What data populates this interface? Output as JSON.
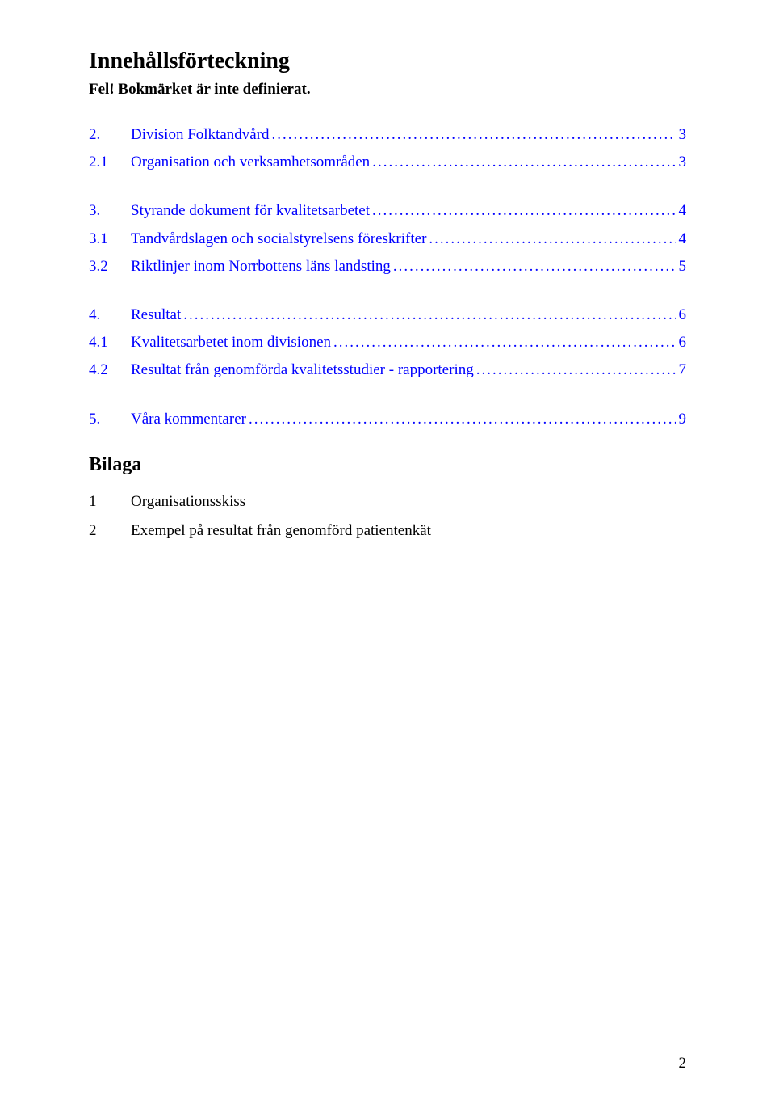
{
  "colors": {
    "text": "#000000",
    "link": "#0000ff",
    "background": "#ffffff"
  },
  "typography": {
    "font_family": "Times New Roman",
    "heading_size_pt": 21,
    "subheading_size_pt": 14,
    "body_size_pt": 14,
    "bilaga_heading_size_pt": 18
  },
  "heading": "Innehållsförteckning",
  "subheading": "Fel! Bokmärket är inte definierat.",
  "leader_char": ".",
  "toc_blocks": [
    {
      "rows": [
        {
          "num": "2.",
          "label": "Division Folktandvård",
          "page": "3",
          "link": true
        },
        {
          "num": "2.1",
          "label": "Organisation och verksamhetsområden",
          "page": "3",
          "link": true
        }
      ]
    },
    {
      "rows": [
        {
          "num": "3.",
          "label": "Styrande dokument för kvalitetsarbetet",
          "page": "4",
          "link": true
        },
        {
          "num": "3.1",
          "label": "Tandvårdslagen och socialstyrelsens föreskrifter",
          "page": "4",
          "link": true
        },
        {
          "num": "3.2",
          "label": "Riktlinjer inom Norrbottens läns landsting",
          "page": "5",
          "link": true
        }
      ]
    },
    {
      "rows": [
        {
          "num": "4.",
          "label": "Resultat",
          "page": "6",
          "link": true
        },
        {
          "num": "4.1",
          "label": "Kvalitetsarbetet inom divisionen",
          "page": "6",
          "link": true
        },
        {
          "num": "4.2",
          "label": "Resultat från genomförda kvalitetsstudier - rapportering",
          "page": "7",
          "link": true
        }
      ]
    },
    {
      "rows": [
        {
          "num": "5.",
          "label": "Våra kommentarer",
          "page": "9",
          "link": true
        }
      ]
    }
  ],
  "bilaga": {
    "heading": "Bilaga",
    "rows": [
      {
        "num": "1",
        "label": "Organisationsskiss"
      },
      {
        "num": "2",
        "label": "Exempel på resultat från genomförd patientenkät"
      }
    ]
  },
  "page_number": "2"
}
